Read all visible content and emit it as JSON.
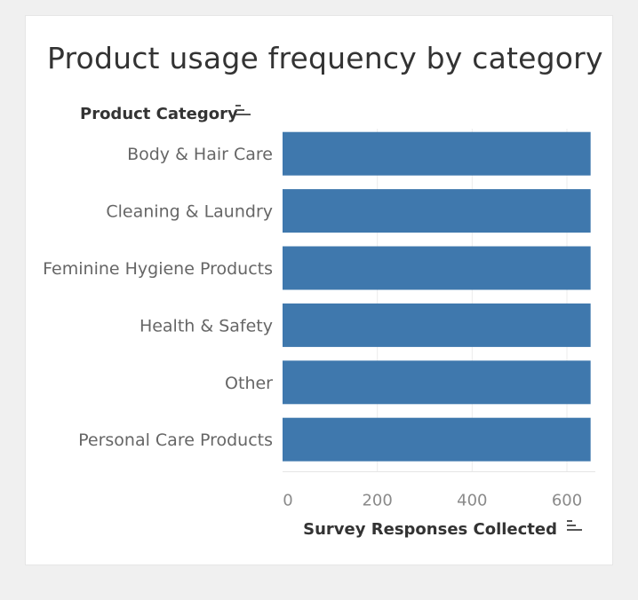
{
  "chart_data": {
    "type": "bar",
    "orientation": "horizontal",
    "title": "Product usage frequency by category",
    "ylabel": "Product Category",
    "xlabel": "Survey Responses Collected",
    "categories": [
      "Body & Hair Care",
      "Cleaning & Laundry",
      "Feminine Hygiene Products",
      "Health & Safety",
      "Other",
      "Personal Care Products"
    ],
    "values": [
      650,
      650,
      650,
      650,
      650,
      650
    ],
    "xlim": [
      0,
      660
    ],
    "xticks": [
      0,
      200,
      400,
      600
    ],
    "bar_color": "#3f78ad",
    "grid": true,
    "sort_icon": "sort-descending-icon"
  }
}
